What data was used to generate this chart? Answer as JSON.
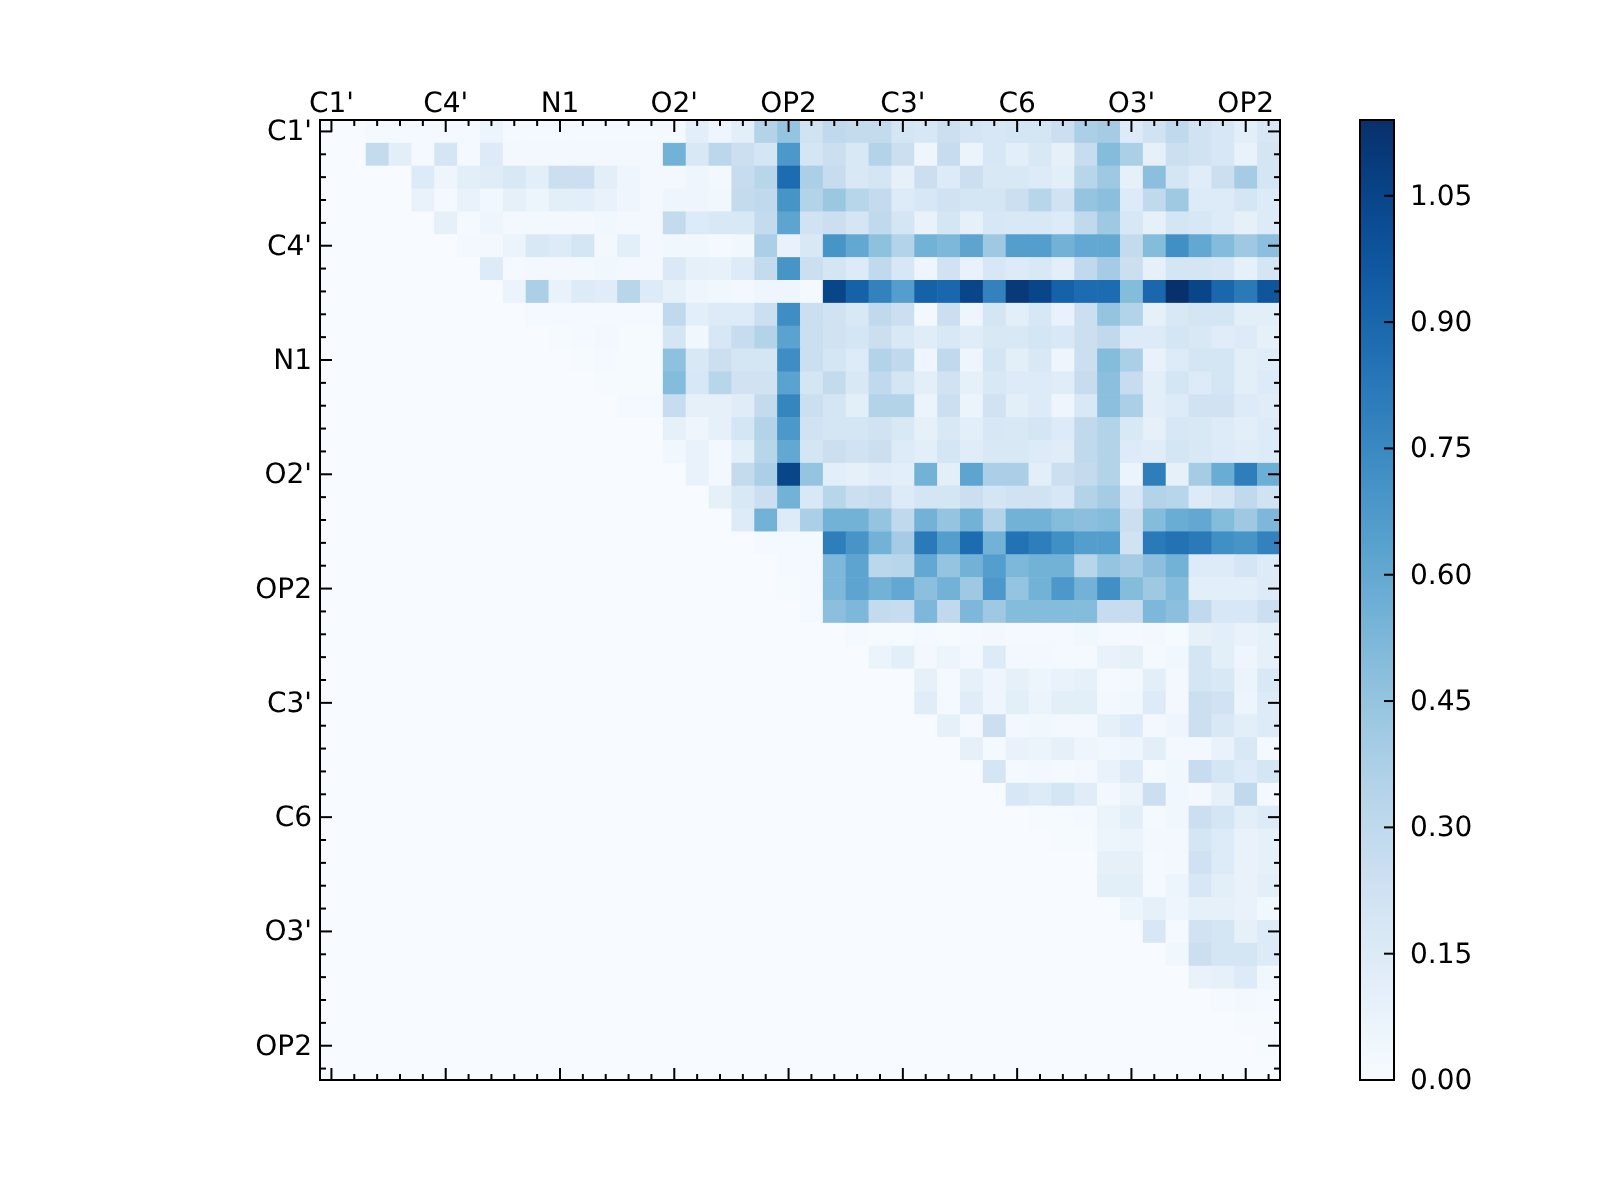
{
  "chart_data": {
    "type": "heatmap",
    "categories": [
      "C1'",
      null,
      null,
      null,
      null,
      "C4'",
      null,
      null,
      null,
      null,
      "N1",
      null,
      null,
      null,
      null,
      "O2'",
      null,
      null,
      null,
      null,
      "OP2",
      null,
      null,
      null,
      null,
      "C3'",
      null,
      null,
      null,
      null,
      "C6",
      null,
      null,
      null,
      null,
      "O3'",
      null,
      null,
      null,
      null,
      "OP2",
      null
    ],
    "y_categories": [
      "C1'",
      null,
      null,
      null,
      null,
      "C4'",
      null,
      null,
      null,
      null,
      "N1",
      null,
      null,
      null,
      null,
      "O2'",
      null,
      null,
      null,
      null,
      "OP2",
      null,
      null,
      null,
      null,
      "C3'",
      null,
      null,
      null,
      null,
      "C6",
      null,
      null,
      null,
      null,
      "O3'",
      null,
      null,
      null,
      null,
      "OP2",
      null
    ],
    "clim": [
      0,
      1.14
    ],
    "cticks": [
      {
        "value": 0,
        "label": "0.00"
      },
      {
        "value": 0.15,
        "label": "0.15"
      },
      {
        "value": 0.3,
        "label": "0.30"
      },
      {
        "value": 0.45,
        "label": "0.45"
      },
      {
        "value": 0.6,
        "label": "0.60"
      },
      {
        "value": 0.75,
        "label": "0.75"
      },
      {
        "value": 0.9,
        "label": "0.90"
      },
      {
        "value": 1.05,
        "label": "1.05"
      }
    ],
    "cells": [
      [
        0,
        0,
        0.02,
        0.02,
        0.02,
        0.02,
        0.02,
        0.06,
        0.02,
        0.02,
        0.02,
        0.02,
        0.02,
        0.02,
        0.02,
        0.02,
        0.12,
        0.05,
        0.12,
        0.35,
        0.45,
        0.22,
        0.3,
        0.28,
        0.28,
        0.2,
        0.18,
        0.25,
        0.2,
        0.18,
        0.2,
        0.2,
        0.25,
        0.38,
        0.4,
        0.15,
        0.22,
        0.3,
        0.22,
        0.18,
        0.12,
        0.18
      ],
      [
        0,
        0,
        0.28,
        0.12,
        0.02,
        0.2,
        0.02,
        0.15,
        0.03,
        0.03,
        0.03,
        0.03,
        0.03,
        0.03,
        0.03,
        0.55,
        0.17,
        0.32,
        0.25,
        0.2,
        0.68,
        0.2,
        0.25,
        0.17,
        0.35,
        0.25,
        0.05,
        0.27,
        0.07,
        0.18,
        0.12,
        0.17,
        0.1,
        0.27,
        0.5,
        0.38,
        0.1,
        0.25,
        0.22,
        0.18,
        0.08,
        0.2
      ],
      [
        0,
        0,
        0,
        0,
        0.15,
        0.05,
        0.12,
        0.13,
        0.17,
        0.12,
        0.25,
        0.25,
        0.12,
        0.05,
        0.03,
        0.03,
        0.05,
        0.03,
        0.27,
        0.33,
        0.88,
        0.38,
        0.27,
        0.17,
        0.2,
        0.1,
        0.25,
        0.15,
        0.25,
        0.17,
        0.17,
        0.15,
        0.12,
        0.33,
        0.42,
        0.1,
        0.48,
        0.2,
        0.13,
        0.25,
        0.4,
        0.2
      ],
      [
        0,
        0,
        0,
        0,
        0.08,
        0.02,
        0.08,
        0.04,
        0.1,
        0.06,
        0.12,
        0.12,
        0.08,
        0.05,
        0.03,
        0.05,
        0.05,
        0.04,
        0.28,
        0.3,
        0.7,
        0.35,
        0.43,
        0.33,
        0.28,
        0.15,
        0.18,
        0.22,
        0.2,
        0.2,
        0.25,
        0.33,
        0.22,
        0.45,
        0.48,
        0.15,
        0.3,
        0.42,
        0.15,
        0.15,
        0.2,
        0.15
      ],
      [
        0,
        0,
        0,
        0,
        0,
        0.1,
        0.02,
        0.05,
        0.03,
        0.03,
        0.03,
        0.03,
        0.04,
        0.03,
        0.03,
        0.28,
        0.15,
        0.17,
        0.17,
        0.28,
        0.62,
        0.22,
        0.25,
        0.2,
        0.3,
        0.2,
        0.08,
        0.2,
        0.1,
        0.18,
        0.17,
        0.17,
        0.15,
        0.3,
        0.42,
        0.18,
        0.1,
        0.2,
        0.18,
        0.15,
        0.1,
        0.15
      ],
      [
        0,
        0,
        0,
        0,
        0,
        0,
        0.03,
        0.03,
        0.07,
        0.17,
        0.15,
        0.2,
        0.03,
        0.12,
        0.03,
        0.04,
        0.04,
        0.02,
        0.04,
        0.38,
        0.08,
        0.17,
        0.7,
        0.6,
        0.47,
        0.35,
        0.55,
        0.52,
        0.62,
        0.42,
        0.65,
        0.65,
        0.55,
        0.6,
        0.6,
        0.28,
        0.5,
        0.72,
        0.6,
        0.5,
        0.42,
        0.48
      ],
      [
        0,
        0,
        0,
        0,
        0,
        0,
        0,
        0.15,
        0.02,
        0.03,
        0.03,
        0.03,
        0.04,
        0.03,
        0.03,
        0.16,
        0.1,
        0.09,
        0.15,
        0.28,
        0.7,
        0.25,
        0.2,
        0.15,
        0.3,
        0.18,
        0.05,
        0.22,
        0.08,
        0.18,
        0.15,
        0.17,
        0.12,
        0.3,
        0.4,
        0.25,
        0.1,
        0.2,
        0.2,
        0.18,
        0.1,
        0.2
      ],
      [
        0,
        0,
        0,
        0,
        0,
        0,
        0,
        0,
        0.07,
        0.38,
        0.08,
        0.15,
        0.13,
        0.33,
        0.15,
        0.1,
        0.05,
        0.04,
        0.03,
        0.05,
        0.05,
        0.02,
        1.05,
        0.92,
        0.78,
        0.65,
        0.92,
        0.9,
        1.05,
        0.78,
        1.1,
        1.05,
        0.92,
        0.88,
        0.88,
        0.5,
        0.9,
        1.14,
        1.05,
        0.9,
        0.82,
        0.98
      ],
      [
        0,
        0,
        0,
        0,
        0,
        0,
        0,
        0,
        0,
        0.02,
        0.02,
        0.02,
        0.02,
        0.02,
        0.02,
        0.3,
        0.12,
        0.15,
        0.15,
        0.25,
        0.73,
        0.25,
        0.22,
        0.17,
        0.3,
        0.25,
        0.03,
        0.25,
        0.05,
        0.2,
        0.12,
        0.18,
        0.08,
        0.25,
        0.45,
        0.35,
        0.1,
        0.17,
        0.2,
        0.2,
        0.12,
        0.12
      ],
      [
        0,
        0,
        0,
        0,
        0,
        0,
        0,
        0,
        0,
        0,
        0.01,
        0.02,
        0.03,
        0.01,
        0.01,
        0.2,
        0.04,
        0.18,
        0.27,
        0.35,
        0.63,
        0.25,
        0.22,
        0.2,
        0.25,
        0.17,
        0.13,
        0.17,
        0.13,
        0.17,
        0.17,
        0.2,
        0.17,
        0.25,
        0.3,
        0.15,
        0.15,
        0.2,
        0.17,
        0.13,
        0.15,
        0.1
      ],
      [
        0,
        0,
        0,
        0,
        0,
        0,
        0,
        0,
        0,
        0,
        0,
        0.01,
        0.02,
        0.01,
        0.01,
        0.47,
        0.17,
        0.25,
        0.2,
        0.2,
        0.73,
        0.25,
        0.2,
        0.15,
        0.35,
        0.3,
        0.05,
        0.3,
        0.05,
        0.2,
        0.12,
        0.17,
        0.05,
        0.25,
        0.5,
        0.38,
        0.08,
        0.15,
        0.2,
        0.2,
        0.12,
        0.13
      ],
      [
        0,
        0,
        0,
        0,
        0,
        0,
        0,
        0,
        0,
        0,
        0,
        0,
        0.01,
        0.01,
        0.01,
        0.5,
        0.18,
        0.33,
        0.22,
        0.22,
        0.63,
        0.2,
        0.28,
        0.17,
        0.3,
        0.2,
        0.12,
        0.22,
        0.1,
        0.17,
        0.15,
        0.15,
        0.13,
        0.27,
        0.48,
        0.27,
        0.12,
        0.2,
        0.15,
        0.2,
        0.12,
        0.15
      ],
      [
        0,
        0,
        0,
        0,
        0,
        0,
        0,
        0,
        0,
        0,
        0,
        0,
        0,
        0.02,
        0.02,
        0.27,
        0.1,
        0.1,
        0.13,
        0.28,
        0.77,
        0.25,
        0.2,
        0.12,
        0.35,
        0.35,
        0.07,
        0.25,
        0.07,
        0.22,
        0.12,
        0.15,
        0.05,
        0.17,
        0.48,
        0.38,
        0.12,
        0.15,
        0.22,
        0.22,
        0.15,
        0.13
      ],
      [
        0,
        0,
        0,
        0,
        0,
        0,
        0,
        0,
        0,
        0,
        0,
        0,
        0,
        0,
        0,
        0.1,
        0.05,
        0.1,
        0.2,
        0.35,
        0.68,
        0.22,
        0.2,
        0.2,
        0.22,
        0.17,
        0.1,
        0.17,
        0.12,
        0.18,
        0.17,
        0.2,
        0.15,
        0.3,
        0.35,
        0.17,
        0.1,
        0.18,
        0.17,
        0.15,
        0.12,
        0.15
      ],
      [
        0,
        0,
        0,
        0,
        0,
        0,
        0,
        0,
        0,
        0,
        0,
        0,
        0,
        0,
        0,
        0.04,
        0.08,
        0.03,
        0.12,
        0.33,
        0.6,
        0.2,
        0.25,
        0.22,
        0.25,
        0.15,
        0.12,
        0.2,
        0.13,
        0.17,
        0.17,
        0.15,
        0.13,
        0.3,
        0.35,
        0.15,
        0.13,
        0.2,
        0.17,
        0.15,
        0.13,
        0.15
      ],
      [
        0,
        0,
        0,
        0,
        0,
        0,
        0,
        0,
        0,
        0,
        0,
        0,
        0,
        0,
        0,
        0,
        0.08,
        0.03,
        0.28,
        0.38,
        1.05,
        0.45,
        0.12,
        0.1,
        0.13,
        0.12,
        0.55,
        0.12,
        0.62,
        0.38,
        0.38,
        0.12,
        0.25,
        0.28,
        0.35,
        0.07,
        0.8,
        0.1,
        0.4,
        0.58,
        0.8,
        0.57
      ],
      [
        0,
        0,
        0,
        0,
        0,
        0,
        0,
        0,
        0,
        0,
        0,
        0,
        0,
        0,
        0,
        0,
        0,
        0.1,
        0.17,
        0.25,
        0.55,
        0.17,
        0.33,
        0.25,
        0.27,
        0.15,
        0.2,
        0.2,
        0.25,
        0.2,
        0.22,
        0.22,
        0.18,
        0.35,
        0.4,
        0.18,
        0.35,
        0.33,
        0.15,
        0.2,
        0.3,
        0.22
      ],
      [
        0,
        0,
        0,
        0,
        0,
        0,
        0,
        0,
        0,
        0,
        0,
        0,
        0,
        0,
        0,
        0,
        0,
        0,
        0.15,
        0.55,
        0.15,
        0.38,
        0.55,
        0.55,
        0.45,
        0.3,
        0.55,
        0.45,
        0.55,
        0.35,
        0.55,
        0.55,
        0.5,
        0.48,
        0.5,
        0.25,
        0.5,
        0.58,
        0.6,
        0.5,
        0.42,
        0.52
      ],
      [
        0,
        0,
        0,
        0,
        0,
        0,
        0,
        0,
        0,
        0,
        0,
        0,
        0,
        0,
        0,
        0,
        0,
        0,
        0,
        0.02,
        0.02,
        0.02,
        0.8,
        0.7,
        0.55,
        0.4,
        0.82,
        0.65,
        0.88,
        0.55,
        0.85,
        0.8,
        0.72,
        0.65,
        0.65,
        0.22,
        0.82,
        0.85,
        0.82,
        0.72,
        0.7,
        0.78
      ],
      [
        0,
        0,
        0,
        0,
        0,
        0,
        0,
        0,
        0,
        0,
        0,
        0,
        0,
        0,
        0,
        0,
        0,
        0,
        0,
        0,
        0.02,
        0.02,
        0.52,
        0.62,
        0.32,
        0.33,
        0.6,
        0.45,
        0.55,
        0.65,
        0.52,
        0.55,
        0.55,
        0.33,
        0.45,
        0.4,
        0.48,
        0.55,
        0.15,
        0.15,
        0.2,
        0.15
      ],
      [
        0,
        0,
        0,
        0,
        0,
        0,
        0,
        0,
        0,
        0,
        0,
        0,
        0,
        0,
        0,
        0,
        0,
        0,
        0,
        0,
        0.01,
        0.02,
        0.52,
        0.62,
        0.55,
        0.6,
        0.48,
        0.55,
        0.42,
        0.68,
        0.45,
        0.55,
        0.68,
        0.55,
        0.72,
        0.5,
        0.42,
        0.5,
        0.12,
        0.12,
        0.12,
        0.15
      ],
      [
        0,
        0,
        0,
        0,
        0,
        0,
        0,
        0,
        0,
        0,
        0,
        0,
        0,
        0,
        0,
        0,
        0,
        0,
        0,
        0,
        0,
        0.02,
        0.48,
        0.52,
        0.28,
        0.27,
        0.52,
        0.3,
        0.52,
        0.42,
        0.5,
        0.5,
        0.5,
        0.5,
        0.27,
        0.27,
        0.52,
        0.48,
        0.3,
        0.18,
        0.18,
        0.25
      ],
      [
        0,
        0,
        0,
        0,
        0,
        0,
        0,
        0,
        0,
        0,
        0,
        0,
        0,
        0,
        0,
        0,
        0,
        0,
        0,
        0,
        0,
        0,
        0,
        0.02,
        0.01,
        0.01,
        0.02,
        0.01,
        0.02,
        0.03,
        0.02,
        0.02,
        0.02,
        0.04,
        0.02,
        0.02,
        0.03,
        0.01,
        0.1,
        0.12,
        0.08,
        0.1
      ],
      [
        0,
        0,
        0,
        0,
        0,
        0,
        0,
        0,
        0,
        0,
        0,
        0,
        0,
        0,
        0,
        0,
        0,
        0,
        0,
        0,
        0,
        0,
        0,
        0,
        0.07,
        0.12,
        0.03,
        0.06,
        0.03,
        0.15,
        0.03,
        0.03,
        0.02,
        0.02,
        0.08,
        0.1,
        0.02,
        0.04,
        0.2,
        0.12,
        0.05,
        0.1
      ],
      [
        0,
        0,
        0,
        0,
        0,
        0,
        0,
        0,
        0,
        0,
        0,
        0,
        0,
        0,
        0,
        0,
        0,
        0,
        0,
        0,
        0,
        0,
        0,
        0,
        0,
        0,
        0.1,
        0.02,
        0.1,
        0.05,
        0.1,
        0.06,
        0.08,
        0.1,
        0.02,
        0.03,
        0.12,
        0.03,
        0.2,
        0.17,
        0.07,
        0.17
      ],
      [
        0,
        0,
        0,
        0,
        0,
        0,
        0,
        0,
        0,
        0,
        0,
        0,
        0,
        0,
        0,
        0,
        0,
        0,
        0,
        0,
        0,
        0,
        0,
        0,
        0,
        0,
        0.13,
        0.02,
        0.13,
        0.05,
        0.12,
        0.07,
        0.12,
        0.12,
        0.03,
        0.04,
        0.15,
        0.03,
        0.25,
        0.22,
        0.06,
        0.15
      ],
      [
        0,
        0,
        0,
        0,
        0,
        0,
        0,
        0,
        0,
        0,
        0,
        0,
        0,
        0,
        0,
        0,
        0,
        0,
        0,
        0,
        0,
        0,
        0,
        0,
        0,
        0,
        0,
        0.1,
        0.02,
        0.25,
        0.03,
        0.04,
        0.03,
        0.03,
        0.1,
        0.15,
        0.03,
        0.05,
        0.25,
        0.17,
        0.12,
        0.15
      ],
      [
        0,
        0,
        0,
        0,
        0,
        0,
        0,
        0,
        0,
        0,
        0,
        0,
        0,
        0,
        0,
        0,
        0,
        0,
        0,
        0,
        0,
        0,
        0,
        0,
        0,
        0,
        0,
        0,
        0.1,
        0.02,
        0.08,
        0.07,
        0.1,
        0.05,
        0.04,
        0.05,
        0.12,
        0.03,
        0.03,
        0.08,
        0.17,
        0.02
      ],
      [
        0,
        0,
        0,
        0,
        0,
        0,
        0,
        0,
        0,
        0,
        0,
        0,
        0,
        0,
        0,
        0,
        0,
        0,
        0,
        0,
        0,
        0,
        0,
        0,
        0,
        0,
        0,
        0,
        0,
        0.2,
        0.02,
        0.03,
        0.02,
        0.03,
        0.08,
        0.15,
        0.02,
        0.04,
        0.27,
        0.2,
        0.15,
        0.2
      ],
      [
        0,
        0,
        0,
        0,
        0,
        0,
        0,
        0,
        0,
        0,
        0,
        0,
        0,
        0,
        0,
        0,
        0,
        0,
        0,
        0,
        0,
        0,
        0,
        0,
        0,
        0,
        0,
        0,
        0,
        0,
        0.18,
        0.15,
        0.2,
        0.13,
        0.03,
        0.07,
        0.25,
        0.04,
        0.03,
        0.1,
        0.3,
        0.02
      ],
      [
        0,
        0,
        0,
        0,
        0,
        0,
        0,
        0,
        0,
        0,
        0,
        0,
        0,
        0,
        0,
        0,
        0,
        0,
        0,
        0,
        0,
        0,
        0,
        0,
        0,
        0,
        0,
        0,
        0,
        0,
        0,
        0.01,
        0.01,
        0.02,
        0.07,
        0.12,
        0.02,
        0.04,
        0.25,
        0.2,
        0.12,
        0.15
      ],
      [
        0,
        0,
        0,
        0,
        0,
        0,
        0,
        0,
        0,
        0,
        0,
        0,
        0,
        0,
        0,
        0,
        0,
        0,
        0,
        0,
        0,
        0,
        0,
        0,
        0,
        0,
        0,
        0,
        0,
        0,
        0,
        0,
        0.01,
        0.01,
        0.06,
        0.07,
        0.03,
        0.03,
        0.2,
        0.15,
        0.08,
        0.1
      ],
      [
        0,
        0,
        0,
        0,
        0,
        0,
        0,
        0,
        0,
        0,
        0,
        0,
        0,
        0,
        0,
        0,
        0,
        0,
        0,
        0,
        0,
        0,
        0,
        0,
        0,
        0,
        0,
        0,
        0,
        0,
        0,
        0,
        0,
        0,
        0.1,
        0.1,
        0.02,
        0.03,
        0.23,
        0.15,
        0.08,
        0.1
      ],
      [
        0,
        0,
        0,
        0,
        0,
        0,
        0,
        0,
        0,
        0,
        0,
        0,
        0,
        0,
        0,
        0,
        0,
        0,
        0,
        0,
        0,
        0,
        0,
        0,
        0,
        0,
        0,
        0,
        0,
        0,
        0,
        0,
        0,
        0,
        0.12,
        0.12,
        0.02,
        0.06,
        0.18,
        0.12,
        0.08,
        0.12
      ],
      [
        0,
        0,
        0,
        0,
        0,
        0,
        0,
        0,
        0,
        0,
        0,
        0,
        0,
        0,
        0,
        0,
        0,
        0,
        0,
        0,
        0,
        0,
        0,
        0,
        0,
        0,
        0,
        0,
        0,
        0,
        0,
        0,
        0,
        0,
        0,
        0.06,
        0.1,
        0.05,
        0.1,
        0.1,
        0.08,
        0.04
      ],
      [
        0,
        0,
        0,
        0,
        0,
        0,
        0,
        0,
        0,
        0,
        0,
        0,
        0,
        0,
        0,
        0,
        0,
        0,
        0,
        0,
        0,
        0,
        0,
        0,
        0,
        0,
        0,
        0,
        0,
        0,
        0,
        0,
        0,
        0,
        0,
        0,
        0.18,
        0.02,
        0.22,
        0.2,
        0.1,
        0.15
      ],
      [
        0,
        0,
        0,
        0,
        0,
        0,
        0,
        0,
        0,
        0,
        0,
        0,
        0,
        0,
        0,
        0,
        0,
        0,
        0,
        0,
        0,
        0,
        0,
        0,
        0,
        0,
        0,
        0,
        0,
        0,
        0,
        0,
        0,
        0,
        0,
        0,
        0,
        0.04,
        0.25,
        0.2,
        0.2,
        0.15
      ],
      [
        0,
        0,
        0,
        0,
        0,
        0,
        0,
        0,
        0,
        0,
        0,
        0,
        0,
        0,
        0,
        0,
        0,
        0,
        0,
        0,
        0,
        0,
        0,
        0,
        0,
        0,
        0,
        0,
        0,
        0,
        0,
        0,
        0,
        0,
        0,
        0,
        0,
        0,
        0.08,
        0.1,
        0.15,
        0.04
      ],
      [
        0,
        0,
        0,
        0,
        0,
        0,
        0,
        0,
        0,
        0,
        0,
        0,
        0,
        0,
        0,
        0,
        0,
        0,
        0,
        0,
        0,
        0,
        0,
        0,
        0,
        0,
        0,
        0,
        0,
        0,
        0,
        0,
        0,
        0,
        0,
        0,
        0,
        0,
        0,
        0.02,
        0.03,
        0.02
      ],
      [
        0,
        0,
        0,
        0,
        0,
        0,
        0,
        0,
        0,
        0,
        0,
        0,
        0,
        0,
        0,
        0,
        0,
        0,
        0,
        0,
        0,
        0,
        0,
        0,
        0,
        0,
        0,
        0,
        0,
        0,
        0,
        0,
        0,
        0,
        0,
        0,
        0,
        0,
        0,
        0,
        0.01,
        0.01
      ],
      [
        0,
        0,
        0,
        0,
        0,
        0,
        0,
        0,
        0,
        0,
        0,
        0,
        0,
        0,
        0,
        0,
        0,
        0,
        0,
        0,
        0,
        0,
        0,
        0,
        0,
        0,
        0,
        0,
        0,
        0,
        0,
        0,
        0,
        0,
        0,
        0,
        0,
        0,
        0,
        0,
        0,
        0.01
      ],
      [
        0,
        0,
        0,
        0,
        0,
        0,
        0,
        0,
        0,
        0,
        0,
        0,
        0,
        0,
        0,
        0,
        0,
        0,
        0,
        0,
        0,
        0,
        0,
        0,
        0,
        0,
        0,
        0,
        0,
        0,
        0,
        0,
        0,
        0,
        0,
        0,
        0,
        0,
        0,
        0,
        0,
        0
      ]
    ]
  }
}
